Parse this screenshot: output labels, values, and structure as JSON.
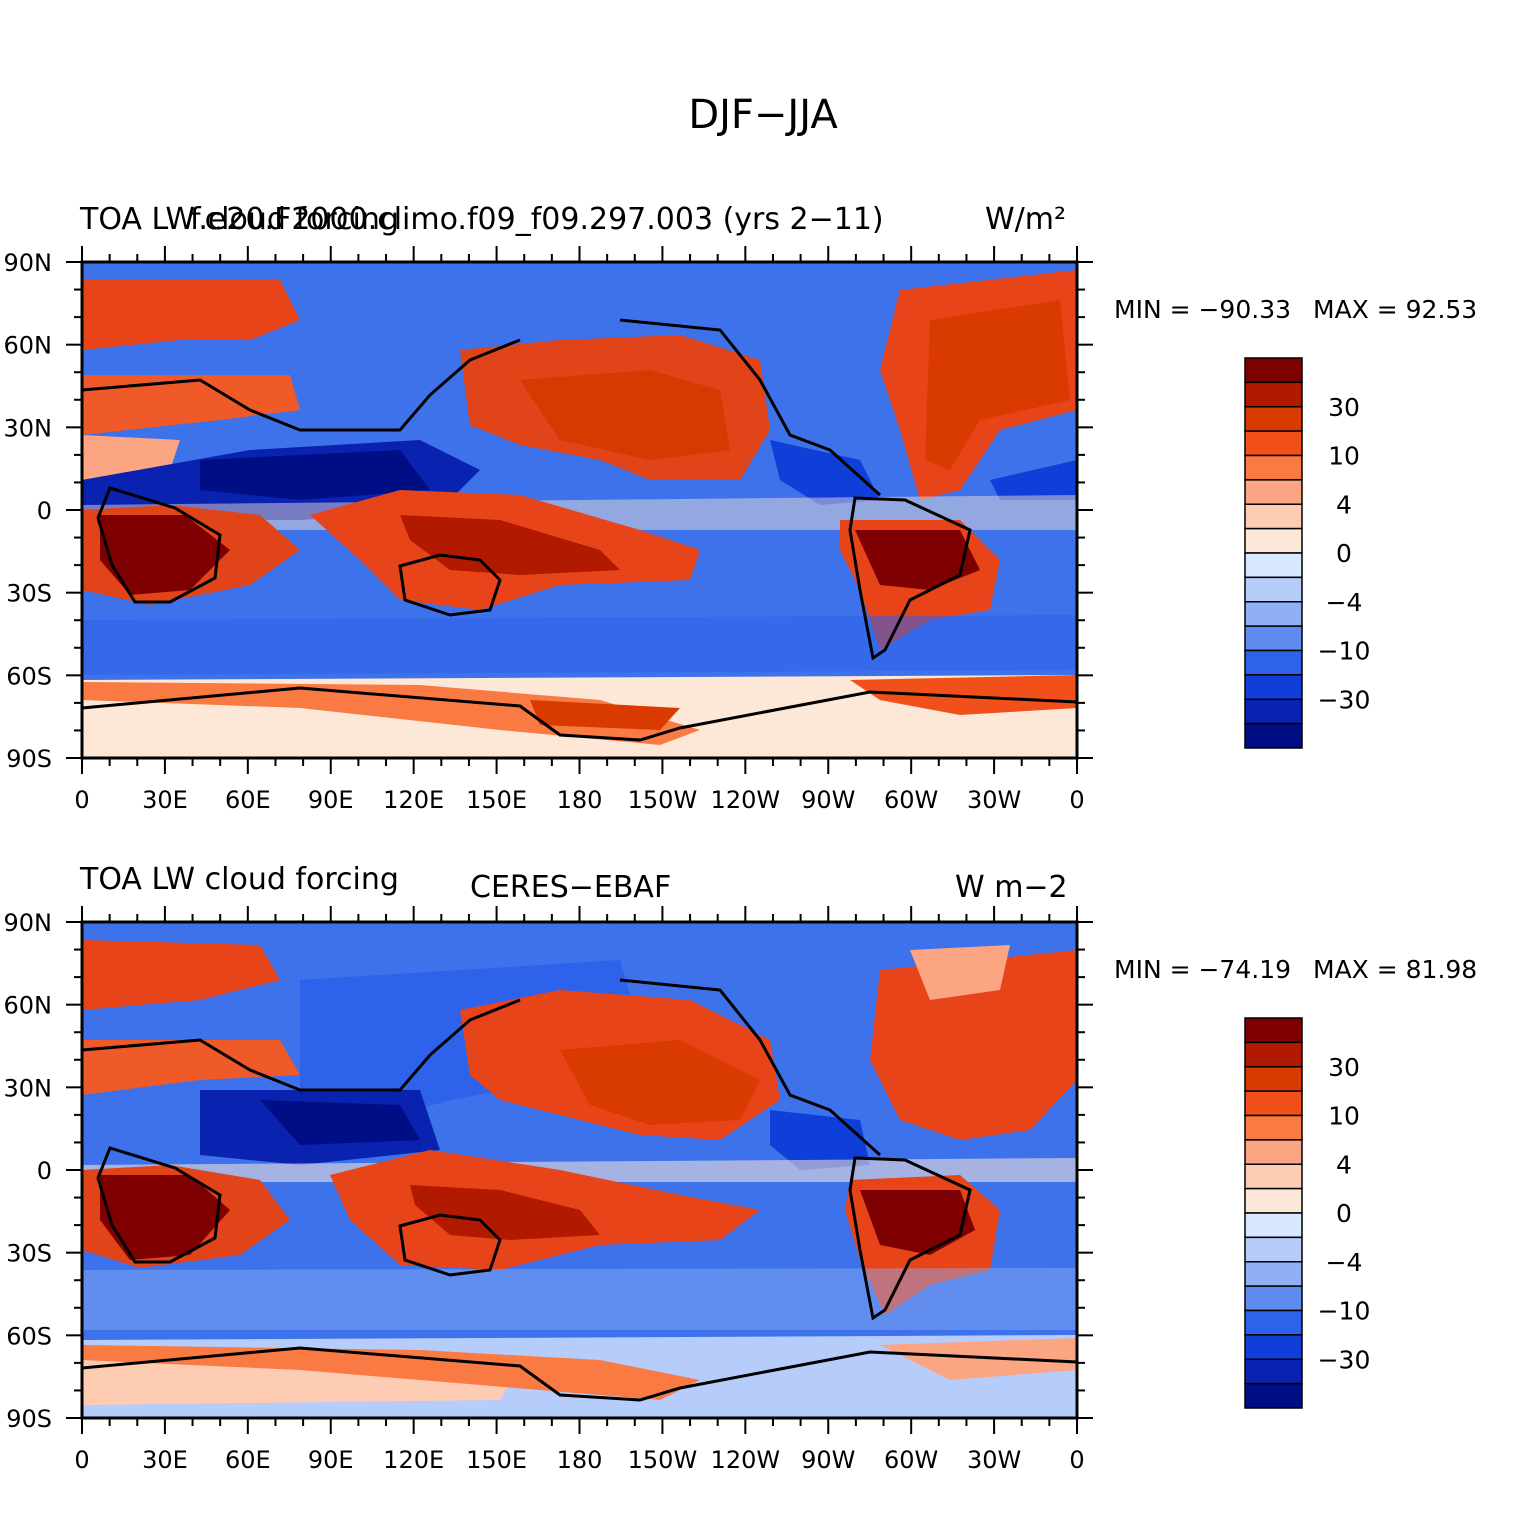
{
  "title": "DJF−JJA",
  "panels": [
    {
      "left_label": "TOA LW cloud forcing",
      "center_label": "f.e20.F2000.climo.f09_f09.297.003 (yrs 2−11)",
      "right_label": "W/m²",
      "min_label": "MIN = −90.33",
      "max_label": "MAX =   92.53",
      "lat_ticks": [
        "90N",
        "60N",
        "30N",
        "0",
        "30S",
        "60S",
        "90S"
      ],
      "lon_ticks": [
        "0",
        "30E",
        "60E",
        "90E",
        "120E",
        "150E",
        "180",
        "150W",
        "120W",
        "90W",
        "60W",
        "30W",
        "0"
      ],
      "colorbar_labels": [
        "30",
        "10",
        "4",
        "0",
        "−4",
        "−10",
        "−30"
      ]
    },
    {
      "left_label": "TOA LW cloud forcing",
      "center_label": "CERES−EBAF",
      "right_label": "W m−2",
      "min_label": "MIN = −74.19",
      "max_label": "MAX =   81.98",
      "lat_ticks": [
        "90N",
        "60N",
        "30N",
        "0",
        "30S",
        "60S",
        "90S"
      ],
      "lon_ticks": [
        "0",
        "30E",
        "60E",
        "90E",
        "120E",
        "150E",
        "180",
        "150W",
        "120W",
        "90W",
        "60W",
        "30W",
        "0"
      ],
      "colorbar_labels": [
        "30",
        "10",
        "4",
        "0",
        "−4",
        "−10",
        "−30"
      ]
    }
  ],
  "colorbar_colors": [
    "#7f0000",
    "#b21a00",
    "#d93a00",
    "#f2501a",
    "#fa7a44",
    "#fca582",
    "#fdccb2",
    "#fde8d8",
    "#d8e8ff",
    "#b6cdfb",
    "#8fb0f6",
    "#5e8cf0",
    "#2f62ea",
    "#0f3fd8",
    "#0a22b0",
    "#000e86"
  ]
}
